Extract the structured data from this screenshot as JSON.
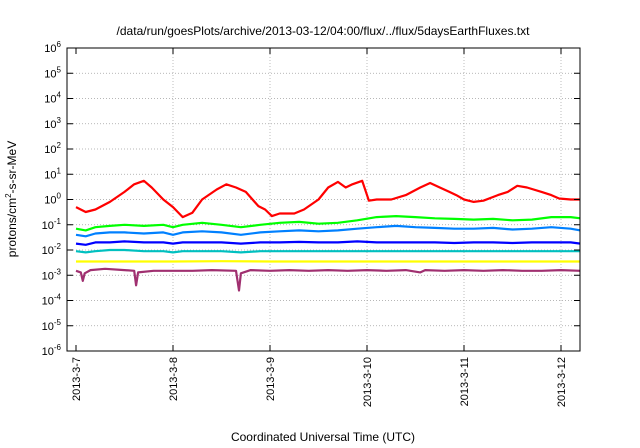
{
  "chart_data": {
    "type": "line",
    "title": "/data/run/goesPlots/archive/2013-03-12/04:00/flux/../flux/5daysEarthFluxes.txt",
    "xlabel": "Coordinated Universal Time (UTC)",
    "ylabel": {
      "prefix": "protons/cm",
      "sup": "2",
      "suffix": "-s-sr-MeV"
    },
    "x_tick_labels": [
      "2013-3-7",
      "2013-3-8",
      "2013-3-9",
      "2013-3-10",
      "2013-3-11",
      "2013-3-12"
    ],
    "xlim_days": [
      0,
      5.2
    ],
    "yscale": "log",
    "ylim": [
      1e-06,
      1000000.0
    ],
    "y_ticks": [
      {
        "base": "10",
        "exp": "-6"
      },
      {
        "base": "10",
        "exp": "-5"
      },
      {
        "base": "10",
        "exp": "-4"
      },
      {
        "base": "10",
        "exp": "-3"
      },
      {
        "base": "10",
        "exp": "-2"
      },
      {
        "base": "10",
        "exp": "-1"
      },
      {
        "base": "10",
        "exp": "0"
      },
      {
        "base": "10",
        "exp": "1"
      },
      {
        "base": "10",
        "exp": "2"
      },
      {
        "base": "10",
        "exp": "3"
      },
      {
        "base": "10",
        "exp": "4"
      },
      {
        "base": "10",
        "exp": "5"
      },
      {
        "base": "10",
        "exp": "6"
      }
    ],
    "grid": true,
    "series": [
      {
        "color": "#ff0000",
        "points": [
          [
            0.0,
            0.5
          ],
          [
            0.1,
            0.32
          ],
          [
            0.2,
            0.4
          ],
          [
            0.35,
            0.8
          ],
          [
            0.5,
            2
          ],
          [
            0.6,
            4
          ],
          [
            0.7,
            5.5
          ],
          [
            0.78,
            3
          ],
          [
            0.9,
            1
          ],
          [
            1.0,
            0.5
          ],
          [
            1.1,
            0.2
          ],
          [
            1.2,
            0.3
          ],
          [
            1.3,
            1
          ],
          [
            1.45,
            2.5
          ],
          [
            1.55,
            4
          ],
          [
            1.65,
            3
          ],
          [
            1.75,
            2
          ],
          [
            1.82,
            1
          ],
          [
            1.88,
            0.55
          ],
          [
            1.95,
            0.4
          ],
          [
            2.02,
            0.22
          ],
          [
            2.1,
            0.28
          ],
          [
            2.25,
            0.28
          ],
          [
            2.35,
            0.4
          ],
          [
            2.5,
            1
          ],
          [
            2.6,
            3
          ],
          [
            2.7,
            5
          ],
          [
            2.78,
            3
          ],
          [
            2.85,
            4
          ],
          [
            2.95,
            5.5
          ],
          [
            3.02,
            0.9
          ],
          [
            3.1,
            1
          ],
          [
            3.25,
            1
          ],
          [
            3.4,
            1.5
          ],
          [
            3.55,
            3
          ],
          [
            3.65,
            4.5
          ],
          [
            3.75,
            3
          ],
          [
            3.85,
            2
          ],
          [
            3.92,
            1.5
          ],
          [
            4.0,
            1
          ],
          [
            4.1,
            0.8
          ],
          [
            4.2,
            0.9
          ],
          [
            4.35,
            1.5
          ],
          [
            4.45,
            2
          ],
          [
            4.55,
            3.5
          ],
          [
            4.65,
            3
          ],
          [
            4.8,
            2
          ],
          [
            4.9,
            1.5
          ],
          [
            4.98,
            1.1
          ],
          [
            5.1,
            1
          ],
          [
            5.2,
            1
          ]
        ]
      },
      {
        "color": "#00ff00",
        "points": [
          [
            0.0,
            0.07
          ],
          [
            0.1,
            0.06
          ],
          [
            0.2,
            0.08
          ],
          [
            0.35,
            0.09
          ],
          [
            0.5,
            0.1
          ],
          [
            0.7,
            0.09
          ],
          [
            0.9,
            0.1
          ],
          [
            1.0,
            0.08
          ],
          [
            1.1,
            0.1
          ],
          [
            1.3,
            0.12
          ],
          [
            1.5,
            0.1
          ],
          [
            1.7,
            0.08
          ],
          [
            1.9,
            0.1
          ],
          [
            2.1,
            0.12
          ],
          [
            2.3,
            0.13
          ],
          [
            2.5,
            0.11
          ],
          [
            2.7,
            0.12
          ],
          [
            2.9,
            0.15
          ],
          [
            3.1,
            0.2
          ],
          [
            3.3,
            0.22
          ],
          [
            3.5,
            0.2
          ],
          [
            3.7,
            0.18
          ],
          [
            3.9,
            0.17
          ],
          [
            4.1,
            0.16
          ],
          [
            4.3,
            0.17
          ],
          [
            4.5,
            0.15
          ],
          [
            4.7,
            0.16
          ],
          [
            4.9,
            0.2
          ],
          [
            5.1,
            0.2
          ],
          [
            5.2,
            0.18
          ]
        ]
      },
      {
        "color": "#0080ff",
        "points": [
          [
            0.0,
            0.04
          ],
          [
            0.1,
            0.035
          ],
          [
            0.2,
            0.045
          ],
          [
            0.35,
            0.05
          ],
          [
            0.5,
            0.05
          ],
          [
            0.7,
            0.045
          ],
          [
            0.9,
            0.05
          ],
          [
            1.0,
            0.04
          ],
          [
            1.1,
            0.05
          ],
          [
            1.3,
            0.055
          ],
          [
            1.5,
            0.05
          ],
          [
            1.7,
            0.04
          ],
          [
            1.9,
            0.05
          ],
          [
            2.1,
            0.055
          ],
          [
            2.3,
            0.06
          ],
          [
            2.5,
            0.055
          ],
          [
            2.7,
            0.06
          ],
          [
            2.9,
            0.07
          ],
          [
            3.1,
            0.08
          ],
          [
            3.3,
            0.09
          ],
          [
            3.5,
            0.08
          ],
          [
            3.7,
            0.075
          ],
          [
            3.9,
            0.07
          ],
          [
            4.1,
            0.07
          ],
          [
            4.3,
            0.075
          ],
          [
            4.5,
            0.065
          ],
          [
            4.7,
            0.07
          ],
          [
            4.9,
            0.08
          ],
          [
            5.1,
            0.07
          ],
          [
            5.2,
            0.06
          ]
        ]
      },
      {
        "color": "#0000ff",
        "points": [
          [
            0.0,
            0.018
          ],
          [
            0.1,
            0.016
          ],
          [
            0.2,
            0.02
          ],
          [
            0.35,
            0.02
          ],
          [
            0.5,
            0.022
          ],
          [
            0.7,
            0.02
          ],
          [
            0.9,
            0.02
          ],
          [
            1.0,
            0.018
          ],
          [
            1.1,
            0.02
          ],
          [
            1.3,
            0.02
          ],
          [
            1.5,
            0.02
          ],
          [
            1.7,
            0.018
          ],
          [
            1.9,
            0.02
          ],
          [
            2.1,
            0.02
          ],
          [
            2.3,
            0.021
          ],
          [
            2.5,
            0.02
          ],
          [
            2.7,
            0.02
          ],
          [
            2.9,
            0.022
          ],
          [
            3.1,
            0.02
          ],
          [
            3.3,
            0.02
          ],
          [
            3.5,
            0.02
          ],
          [
            3.7,
            0.02
          ],
          [
            3.9,
            0.019
          ],
          [
            4.1,
            0.02
          ],
          [
            4.3,
            0.02
          ],
          [
            4.5,
            0.019
          ],
          [
            4.7,
            0.02
          ],
          [
            4.9,
            0.02
          ],
          [
            5.1,
            0.02
          ],
          [
            5.2,
            0.018
          ]
        ]
      },
      {
        "color": "#00c0c0",
        "points": [
          [
            0.0,
            0.009
          ],
          [
            0.1,
            0.008
          ],
          [
            0.2,
            0.009
          ],
          [
            0.35,
            0.01
          ],
          [
            0.5,
            0.01
          ],
          [
            0.7,
            0.009
          ],
          [
            0.9,
            0.009
          ],
          [
            1.0,
            0.008
          ],
          [
            1.1,
            0.009
          ],
          [
            1.3,
            0.009
          ],
          [
            1.5,
            0.009
          ],
          [
            1.7,
            0.008
          ],
          [
            1.9,
            0.009
          ],
          [
            2.1,
            0.009
          ],
          [
            2.3,
            0.009
          ],
          [
            2.5,
            0.009
          ],
          [
            2.7,
            0.009
          ],
          [
            2.9,
            0.009
          ],
          [
            3.1,
            0.009
          ],
          [
            3.3,
            0.009
          ],
          [
            3.5,
            0.009
          ],
          [
            3.7,
            0.009
          ],
          [
            3.9,
            0.009
          ],
          [
            4.1,
            0.009
          ],
          [
            4.3,
            0.009
          ],
          [
            4.5,
            0.009
          ],
          [
            4.7,
            0.009
          ],
          [
            4.9,
            0.009
          ],
          [
            5.1,
            0.009
          ],
          [
            5.2,
            0.009
          ]
        ]
      },
      {
        "color": "#ffff00",
        "points": [
          [
            0.0,
            0.0035
          ],
          [
            0.5,
            0.0035
          ],
          [
            1.0,
            0.0035
          ],
          [
            1.5,
            0.0036
          ],
          [
            2.0,
            0.0035
          ],
          [
            2.5,
            0.0035
          ],
          [
            3.0,
            0.0035
          ],
          [
            3.5,
            0.0035
          ],
          [
            4.0,
            0.0035
          ],
          [
            4.5,
            0.0035
          ],
          [
            5.0,
            0.0035
          ],
          [
            5.2,
            0.0035
          ]
        ]
      },
      {
        "color": "#a03070",
        "points": [
          [
            0.0,
            0.0015
          ],
          [
            0.05,
            0.0013
          ],
          [
            0.07,
            0.0006
          ],
          [
            0.09,
            0.0012
          ],
          [
            0.15,
            0.0016
          ],
          [
            0.3,
            0.0018
          ],
          [
            0.5,
            0.0016
          ],
          [
            0.6,
            0.0015
          ],
          [
            0.62,
            0.0004
          ],
          [
            0.64,
            0.0013
          ],
          [
            0.8,
            0.0015
          ],
          [
            1.0,
            0.0015
          ],
          [
            1.2,
            0.0015
          ],
          [
            1.4,
            0.0016
          ],
          [
            1.65,
            0.0015
          ],
          [
            1.68,
            0.00025
          ],
          [
            1.7,
            0.0012
          ],
          [
            1.8,
            0.0016
          ],
          [
            2.0,
            0.0015
          ],
          [
            2.2,
            0.0016
          ],
          [
            2.4,
            0.0015
          ],
          [
            2.6,
            0.0016
          ],
          [
            2.8,
            0.0015
          ],
          [
            3.0,
            0.0016
          ],
          [
            3.2,
            0.0015
          ],
          [
            3.4,
            0.0016
          ],
          [
            3.55,
            0.0013
          ],
          [
            3.6,
            0.0016
          ],
          [
            3.8,
            0.0015
          ],
          [
            4.0,
            0.0016
          ],
          [
            4.2,
            0.0015
          ],
          [
            4.4,
            0.0016
          ],
          [
            4.6,
            0.0015
          ],
          [
            4.8,
            0.0015
          ],
          [
            5.0,
            0.0016
          ],
          [
            5.2,
            0.0015
          ]
        ]
      }
    ]
  }
}
